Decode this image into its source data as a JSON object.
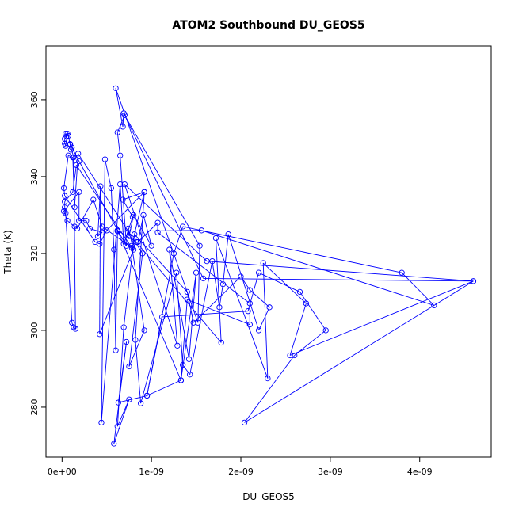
{
  "chart_data": {
    "type": "line",
    "title": "ATOM2 Southbound DU_GEOS5",
    "xlabel": "DU_GEOS5",
    "ylabel": "Theta (K)",
    "xlim": [
      -1.8e-10,
      4.8e-09
    ],
    "ylim": [
      267,
      374
    ],
    "x_ticks": [
      {
        "value": 0,
        "label": "0e+00"
      },
      {
        "value": 1e-09,
        "label": "1e-09"
      },
      {
        "value": 2e-09,
        "label": "2e-09"
      },
      {
        "value": 3e-09,
        "label": "3e-09"
      },
      {
        "value": 4e-09,
        "label": "4e-09"
      }
    ],
    "y_ticks": [
      {
        "value": 280,
        "label": "280"
      },
      {
        "value": 300,
        "label": "300"
      },
      {
        "value": 320,
        "label": "320"
      },
      {
        "value": 340,
        "label": "340"
      },
      {
        "value": 360,
        "label": "360"
      }
    ],
    "grid": false,
    "legend": "none",
    "color": "#0000ff",
    "series": [
      {
        "points": [
          [
            4e-11,
            351.2
          ],
          [
            5e-11,
            350.5
          ],
          [
            3e-11,
            349.8
          ],
          [
            3e-11,
            348.6
          ],
          [
            4e-11,
            348.0
          ],
          [
            6e-11,
            351.2
          ],
          [
            7e-11,
            350.6
          ],
          [
            9e-11,
            348.3
          ],
          [
            1.1e-10,
            347.6
          ],
          [
            1.9e-10,
            344.0
          ],
          [
            7.2e-10,
            322.0
          ],
          [
            6.5e-10,
            345.5
          ],
          [
            6.2e-10,
            351.5
          ],
          [
            7e-10,
            356.0
          ],
          [
            1.54e-09,
            322.0
          ],
          [
            1.52e-09,
            302.0
          ],
          [
            6e-10,
            363.0
          ],
          [
            6.8e-10,
            353.0
          ],
          [
            6.9e-10,
            356.5
          ],
          [
            1.58e-09,
            313.5
          ],
          [
            4.6e-09,
            312.8
          ],
          [
            1.62e-09,
            318.0
          ],
          [
            7e-10,
            338.0
          ],
          [
            1.29e-09,
            296.0
          ],
          [
            1.2e-09,
            321.0
          ],
          [
            1.42e-09,
            292.5
          ],
          [
            1.5e-09,
            315.0
          ],
          [
            1.33e-09,
            287.0
          ],
          [
            6.2e-10,
            326.0
          ],
          [
            8.3e-10,
            323.0
          ],
          [
            1.78e-09,
            296.8
          ],
          [
            1.72e-09,
            324.0
          ],
          [
            2.3e-09,
            287.5
          ],
          [
            2.25e-09,
            317.5
          ],
          [
            2.73e-09,
            307.0
          ],
          [
            2.55e-09,
            293.5
          ],
          [
            4.6e-09,
            312.8
          ],
          [
            2.04e-09,
            276.0
          ],
          [
            2.6e-09,
            293.5
          ],
          [
            2.95e-09,
            300.0
          ],
          [
            2.66e-09,
            310.0
          ],
          [
            2.2e-09,
            315.0
          ],
          [
            2.08e-09,
            305.0
          ],
          [
            1.12e-09,
            303.5
          ],
          [
            9.5e-10,
            283.0
          ],
          [
            1.25e-09,
            320.0
          ],
          [
            1.35e-09,
            327.0
          ],
          [
            3.8e-09,
            315.0
          ],
          [
            4.16e-09,
            306.5
          ],
          [
            1.56e-09,
            326.0
          ],
          [
            6.2e-10,
            325.8
          ],
          [
            6e-10,
            294.8
          ],
          [
            5.8e-10,
            321.0
          ],
          [
            5.5e-10,
            337.0
          ],
          [
            4.8e-10,
            344.5
          ],
          [
            4.4e-10,
            276.0
          ],
          [
            6.5e-10,
            338.0
          ],
          [
            6.9e-10,
            322.5
          ],
          [
            7.9e-10,
            329.5
          ],
          [
            6.8e-10,
            334.0
          ],
          [
            9.2e-10,
            336.0
          ],
          [
            7.8e-10,
            322.0
          ],
          [
            9.2e-10,
            300.0
          ],
          [
            7.5e-10,
            290.6
          ],
          [
            9e-10,
            320.0
          ],
          [
            1.8e-10,
            346.0
          ],
          [
            1.4e-10,
            332.0
          ],
          [
            1.2e-10,
            345.0
          ],
          [
            7e-11,
            345.5
          ],
          [
            2e-11,
            337.0
          ],
          [
            3e-11,
            335.0
          ],
          [
            3.7e-10,
            323.0
          ],
          [
            4.2e-10,
            322.5
          ],
          [
            5e-10,
            326.0
          ],
          [
            9.2e-10,
            336.0
          ],
          [
            8.2e-10,
            297.5
          ],
          [
            8.8e-10,
            281.0
          ],
          [
            1.28e-09,
            315.0
          ],
          [
            1.35e-09,
            291.0
          ],
          [
            1.43e-09,
            288.5
          ],
          [
            1.68e-09,
            318.0
          ],
          [
            1.76e-09,
            306.0
          ],
          [
            1.8e-09,
            312.0
          ],
          [
            1.86e-09,
            325.0
          ],
          [
            2.2e-09,
            300.0
          ],
          [
            2.32e-09,
            306.0
          ],
          [
            2.1e-09,
            310.5
          ],
          [
            2e-09,
            314.0
          ],
          [
            1.47e-09,
            302.0
          ],
          [
            1.4e-09,
            310.0
          ],
          [
            8.1e-10,
            325.0
          ],
          [
            6.9e-10,
            300.8
          ],
          [
            6.2e-10,
            275.0
          ],
          [
            7.5e-10,
            282.0
          ],
          [
            5.8e-10,
            270.5
          ],
          [
            7.2e-10,
            297.0
          ],
          [
            6.3e-10,
            281.2
          ],
          [
            9.5e-10,
            283.0
          ],
          [
            1.33e-09,
            287.0
          ],
          [
            1.4e-09,
            308.0
          ],
          [
            2.1e-09,
            301.5
          ],
          [
            2.1e-09,
            307.0
          ],
          [
            1.07e-09,
            325.5
          ],
          [
            1.07e-09,
            328.0
          ],
          [
            8.5e-10,
            323.0
          ],
          [
            9.1e-10,
            330.0
          ],
          [
            1e-09,
            322.0
          ],
          [
            8e-10,
            330.0
          ],
          [
            7.5e-10,
            324.5
          ],
          [
            7.4e-10,
            326.5
          ],
          [
            8e-10,
            321.0
          ],
          [
            4.2e-10,
            299.0
          ],
          [
            4.3e-10,
            337.5
          ],
          [
            4e-10,
            324.5
          ],
          [
            4.5e-10,
            325.5
          ],
          [
            3.1e-10,
            326.5
          ],
          [
            2.7e-10,
            328.5
          ],
          [
            2.4e-10,
            328.5
          ],
          [
            1.9e-10,
            328.5
          ],
          [
            1.9e-10,
            336.0
          ],
          [
            2e-11,
            331.0
          ],
          [
            6e-11,
            328.5
          ],
          [
            1.4e-10,
            327.0
          ],
          [
            1.7e-10,
            326.5
          ],
          [
            3.5e-10,
            334.0
          ],
          [
            4.5e-10,
            327.0
          ],
          [
            7.8e-10,
            321.5
          ],
          [
            1.6e-10,
            343.0
          ],
          [
            1.2e-10,
            336.0
          ],
          [
            3e-11,
            333.5
          ],
          [
            3e-11,
            332.0
          ],
          [
            4e-11,
            330.5
          ],
          [
            1.1e-10,
            302.0
          ],
          [
            1.3e-10,
            300.8
          ],
          [
            1.5e-10,
            300.4
          ],
          [
            1.3e-10,
            345.0
          ],
          [
            9e-11,
            348.5
          ],
          [
            1e-10,
            347.0
          ]
        ]
      }
    ]
  }
}
